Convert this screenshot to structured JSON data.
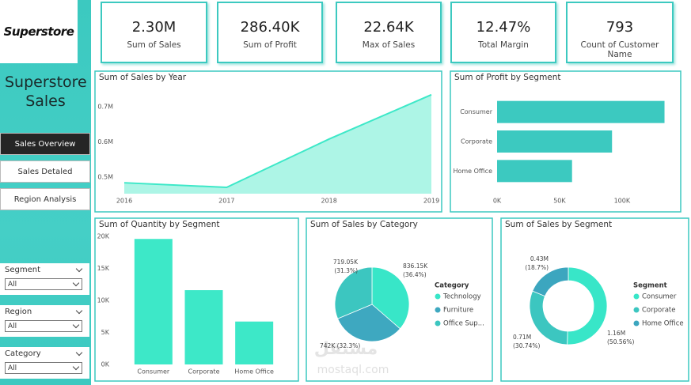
{
  "sidebar": {
    "logo": "Superstore",
    "title": "Superstore Sales",
    "nav": [
      "Sales Overview",
      "Sales Detaled",
      "Region Analysis"
    ],
    "filters": [
      {
        "label": "Segment",
        "value": "All"
      },
      {
        "label": "Region",
        "value": "All"
      },
      {
        "label": "Category",
        "value": "All"
      }
    ]
  },
  "kpis": [
    {
      "value": "2.30M",
      "label": "Sum of Sales"
    },
    {
      "value": "286.40K",
      "label": "Sum of Profit"
    },
    {
      "value": "22.64K",
      "label": "Max of Sales"
    },
    {
      "value": "12.47%",
      "label": "Total Margin"
    },
    {
      "value": "793",
      "label": "Count of Customer Name"
    }
  ],
  "chart_data": [
    {
      "type": "area",
      "title": "Sum of Sales by Year",
      "categories": [
        "2016",
        "2017",
        "2018",
        "2019"
      ],
      "values": [
        484000,
        471000,
        608000,
        734000
      ],
      "color": "#3de8c8",
      "fill": "#adf5e6",
      "ylim": [
        453000,
        756000
      ],
      "yticks": [
        {
          "value": 500000,
          "label": "0.5M"
        },
        {
          "value": 600000,
          "label": "0.6M"
        },
        {
          "value": 700000,
          "label": "0.7M"
        }
      ]
    },
    {
      "type": "hbar",
      "title": "Sum of Profit by Segment",
      "categories": [
        "Consumer",
        "Corporate",
        "Home Office"
      ],
      "values": [
        134000,
        92000,
        60000
      ],
      "color": "#3cc9c0",
      "xlim": [
        0,
        140000
      ],
      "xticks": [
        {
          "value": 0,
          "label": "0K"
        },
        {
          "value": 50000,
          "label": "50K"
        },
        {
          "value": 100000,
          "label": "100K"
        }
      ]
    },
    {
      "type": "bar",
      "title": "Sum of Quantity by Segment",
      "categories": [
        "Consumer",
        "Corporate",
        "Home Office"
      ],
      "values": [
        19600,
        11600,
        6700
      ],
      "color": "#3de8c8",
      "ylim": [
        0,
        20000
      ],
      "yticks": [
        {
          "value": 0,
          "label": "0K"
        },
        {
          "value": 5000,
          "label": "5K"
        },
        {
          "value": 10000,
          "label": "10K"
        },
        {
          "value": 15000,
          "label": "15K"
        },
        {
          "value": 20000,
          "label": "20K"
        }
      ]
    },
    {
      "type": "pie",
      "title": "Sum of Sales by Category",
      "legend_title": "Category",
      "categories": [
        "Technology",
        "Furniture",
        "Office Sup..."
      ],
      "values": [
        836150,
        742000,
        719050
      ],
      "value_labels": [
        "836.15K\n(36.4%)",
        "742K (32.3%)",
        "719.05K\n(31.3%)"
      ],
      "colors": [
        "#38e6c8",
        "#3ea8c0",
        "#3cc6c0"
      ]
    },
    {
      "type": "donut",
      "title": "Sum of Sales by Segment",
      "legend_title": "Segment",
      "categories": [
        "Consumer",
        "Corporate",
        "Home Office"
      ],
      "values": [
        1160000,
        710000,
        430000
      ],
      "value_labels": [
        "1.16M\n(50.56%)",
        "0.71M\n(30.74%)",
        "0.43M\n(18.7%)"
      ],
      "colors": [
        "#38e6c8",
        "#3cc6c0",
        "#3ca6bf"
      ]
    }
  ],
  "watermark": {
    "brand": "مستقل",
    "site": "mostaql.com"
  }
}
